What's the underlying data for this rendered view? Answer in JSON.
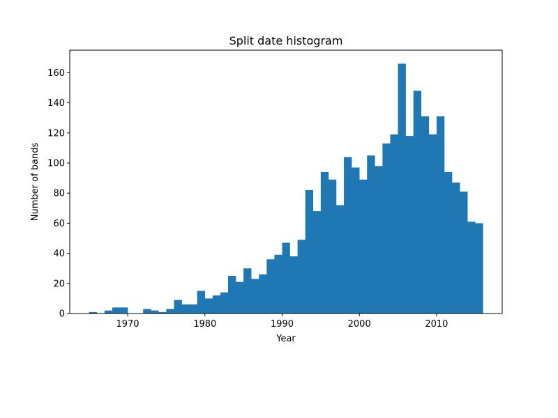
{
  "chart_data": {
    "type": "bar",
    "title": "Split date histogram",
    "xlabel": "Year",
    "ylabel": "Number of bands",
    "xlim": [
      1962.5,
      2018.5
    ],
    "ylim": [
      0,
      175
    ],
    "xticks": [
      1970,
      1980,
      1990,
      2000,
      2010
    ],
    "yticks": [
      0,
      20,
      40,
      60,
      80,
      100,
      120,
      140,
      160
    ],
    "bin_range": [
      1965,
      2016
    ],
    "bin_count": 51,
    "values": [
      1,
      0,
      2,
      4,
      4,
      0,
      0,
      3,
      2,
      1,
      3,
      9,
      6,
      6,
      15,
      10,
      12,
      14,
      25,
      21,
      30,
      23,
      26,
      36,
      39,
      47,
      38,
      49,
      82,
      68,
      94,
      89,
      72,
      104,
      97,
      89,
      105,
      98,
      113,
      119,
      166,
      118,
      148,
      131,
      119,
      131,
      94,
      87,
      81,
      61,
      60
    ],
    "bar_color": "#1f77b4",
    "grid": false,
    "legend": false
  }
}
